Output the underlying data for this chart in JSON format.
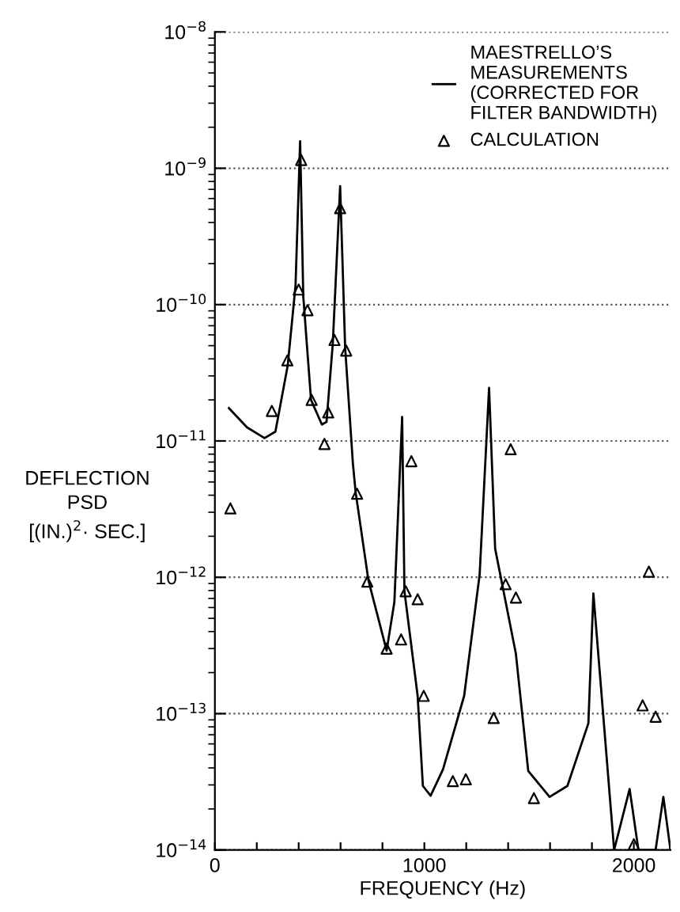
{
  "chart_data": {
    "type": "line",
    "xlabel": "FREQUENCY (Hz)",
    "ylabel": "DEFLECTION\nPSD\n[(IN.)$^{2}$· SEC.]",
    "log": "y",
    "grid": "y",
    "legend": "top right",
    "xlim": [
      0,
      2175
    ],
    "xticks": [
      0,
      {
        "value": 200,
        "label": null
      },
      {
        "value": 400,
        "label": null
      },
      {
        "value": 600,
        "label": null
      },
      {
        "value": 800,
        "label": null
      },
      1000,
      {
        "value": 1200,
        "label": null
      },
      {
        "value": 1400,
        "label": null
      },
      {
        "value": 1600,
        "label": null
      },
      {
        "value": 1800,
        "label": null
      },
      2000
    ],
    "ylim": [
      1e-14,
      1e-08
    ],
    "yticks": [
      {
        "value": 1e-14,
        "label": "10$^{−14}$"
      },
      {
        "value": 1e-13,
        "label": "10$^{−13}$"
      },
      {
        "value": 1e-12,
        "label": "10$^{−12}$"
      },
      {
        "value": 1e-11,
        "label": "10$^{−11}$"
      },
      {
        "value": 1e-10,
        "label": "10$^{−10}$"
      },
      {
        "value": 1e-09,
        "label": "10$^{−9}$"
      },
      {
        "value": 1e-08,
        "label": "10$^{−8}$"
      }
    ],
    "series": [
      {
        "name": "MAESTRELLO’S\nMEASUREMENTS\n(CORRECTED FOR\nFILTER BANDWIDTH)",
        "color": "#000000",
        "marker": "none",
        "line_style": "solid",
        "x": [
          67,
          153,
          237,
          289,
          348,
          385,
          407,
          422,
          459,
          511,
          533,
          563,
          598,
          622,
          659,
          672,
          733,
          820,
          857,
          894,
          905,
          968,
          993,
          1030,
          1089,
          1190,
          1264,
          1309,
          1338,
          1437,
          1496,
          1598,
          1683,
          1783,
          1807,
          1906,
          1980,
          2022,
          2104,
          2141,
          2175
        ],
        "values": [
          1.74e-11,
          1.26e-11,
          1.05e-11,
          1.17e-11,
          3.6e-11,
          1.38e-10,
          1.58e-09,
          1.15e-10,
          2e-11,
          1.32e-11,
          1.38e-11,
          5.2e-11,
          7.4e-10,
          4.8e-11,
          6.8e-12,
          4.2e-12,
          9.5e-13,
          2.9e-13,
          6.6e-13,
          1.5e-11,
          7.9e-13,
          1.35e-13,
          2.95e-14,
          2.5e-14,
          3.9e-14,
          1.35e-13,
          1.05e-12,
          2.45e-11,
          1.62e-12,
          2.75e-13,
          3.8e-14,
          2.45e-14,
          2.95e-14,
          8.5e-14,
          7.6e-13,
          1e-14,
          2.8e-14,
          1e-14,
          1e-14,
          2.45e-14,
          1e-14
        ]
      },
      {
        "name": "CALCULATION",
        "type": "scatter",
        "color": "#000000",
        "marker": "triangle",
        "x": [
          74,
          272,
          346,
          400,
          412,
          442,
          462,
          523,
          541,
          571,
          598,
          627,
          679,
          728,
          820,
          889,
          911,
          938,
          968,
          997,
          1136,
          1198,
          1331,
          1388,
          1412,
          1437,
          1523,
          2000,
          2042,
          2072,
          2104
        ],
        "values": [
          3.2e-12,
          1.66e-11,
          3.9e-11,
          1.29e-10,
          1.15e-09,
          9.1e-11,
          2e-11,
          9.5e-12,
          1.62e-11,
          5.5e-11,
          5.1e-10,
          4.6e-11,
          4.1e-12,
          9.3e-13,
          3e-13,
          3.5e-13,
          7.9e-13,
          7.1e-12,
          6.9e-13,
          1.35e-13,
          3.2e-14,
          3.3e-14,
          9.3e-14,
          8.9e-13,
          8.7e-12,
          7.1e-13,
          2.4e-14,
          1.1e-14,
          1.15e-13,
          1.1e-12,
          9.5e-14
        ]
      }
    ]
  }
}
